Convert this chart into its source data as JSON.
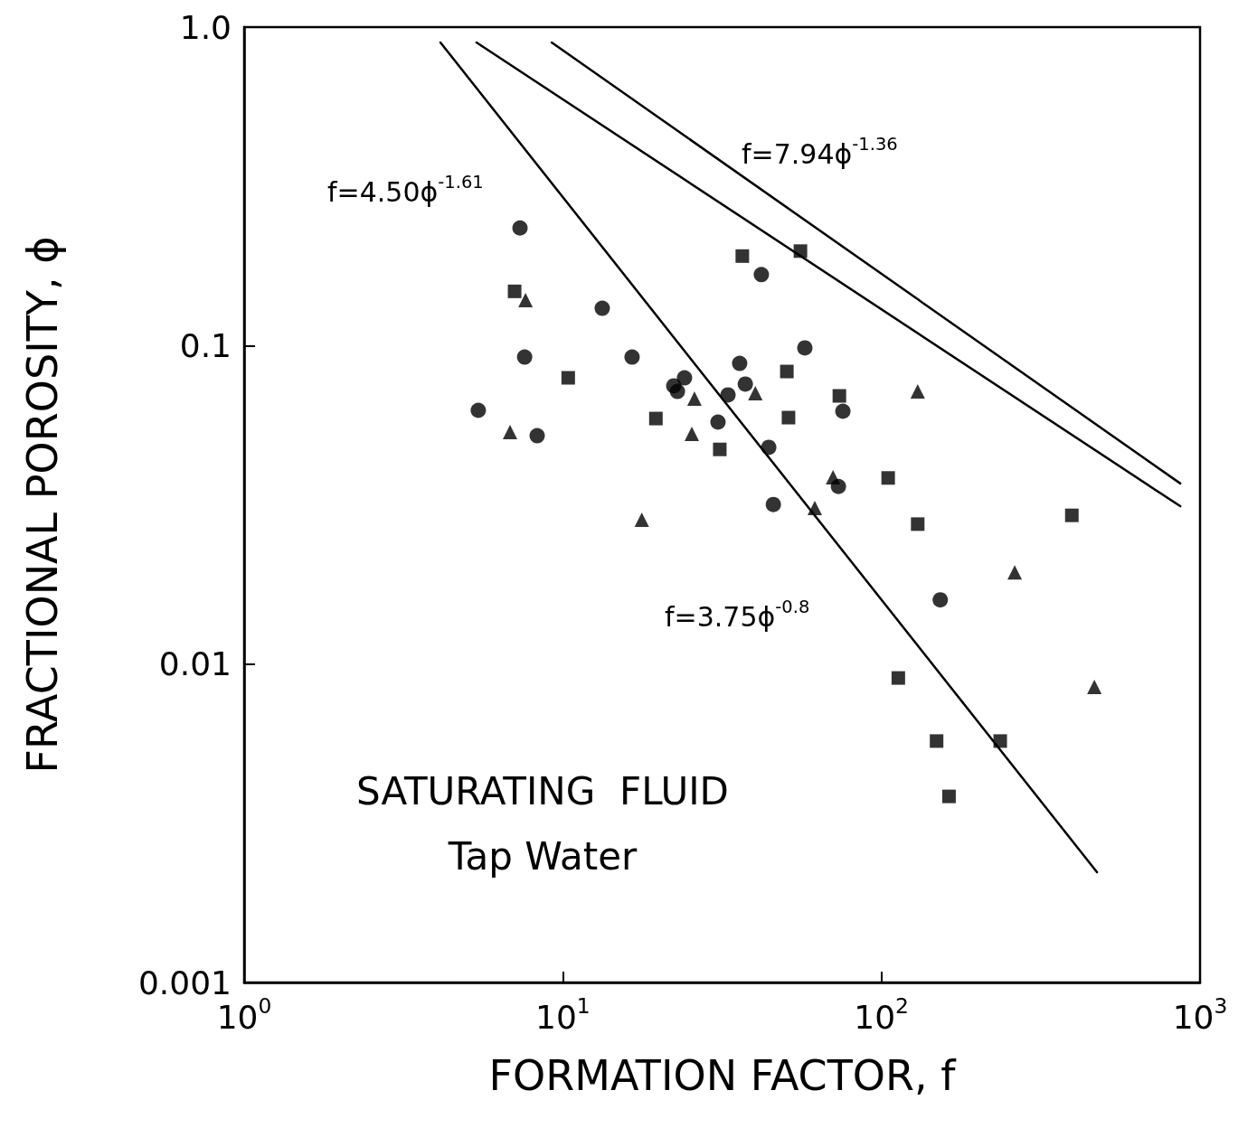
{
  "chart_data": {
    "type": "scatter",
    "xlabel": "FORMATION FACTOR, f",
    "ylabel": "FRACTIONAL POROSITY, ϕ",
    "log": "xy",
    "grid": false,
    "xlim": [
      1,
      1000
    ],
    "xticks": [
      {
        "value": 1,
        "label": "10$^{0}$"
      },
      {
        "value": 10,
        "label": "10$^{1}$"
      },
      {
        "value": 100,
        "label": "10$^{2}$"
      },
      {
        "value": 1000,
        "label": "10$^{3}$"
      }
    ],
    "ylim": [
      0.001,
      1
    ],
    "yticks": [
      0.001,
      0.01,
      0.1,
      {
        "value": 1,
        "label": "1.0"
      }
    ],
    "series": [
      {
        "marker": "circle",
        "color": "#000000",
        "x": [
          7.34,
          7.59,
          5.43,
          13.3,
          16.5,
          22.3,
          22.9,
          30.7,
          37.4,
          42.0,
          57.5,
          73.3,
          153
        ],
        "values": [
          0.234,
          0.092,
          0.0626,
          0.131,
          0.092,
          0.0747,
          0.0718,
          0.0575,
          0.0757,
          0.167,
          0.0983,
          0.0361,
          0.0159
        ]
      },
      {
        "marker": "circle",
        "color": "#000000",
        "x": [
          8.31,
          24.1,
          35.9,
          33.0,
          44.3,
          45.8,
          75.7
        ],
        "values": [
          0.0521,
          0.0792,
          0.0879,
          0.07,
          0.0479,
          0.0317,
          0.0622
        ]
      },
      {
        "marker": "square",
        "color": "#000000",
        "x": [
          7.06,
          10.4,
          31.1,
          36.6,
          55.7,
          50.5,
          51.1,
          73.8,
          105,
          130,
          396,
          149,
          236
        ],
        "values": [
          0.148,
          0.0792,
          0.0472,
          0.191,
          0.198,
          0.0829,
          0.0594,
          0.0695,
          0.0384,
          0.0275,
          0.0293,
          0.00573,
          0.00573
        ]
      },
      {
        "marker": "square",
        "color": "#000000",
        "x": [
          19.6,
          113,
          163
        ],
        "values": [
          0.059,
          0.00904,
          0.00384
        ]
      },
      {
        "marker": "triangle",
        "color": "#000000",
        "x": [
          7.64,
          17.7,
          25.4
        ],
        "values": [
          0.139,
          0.0284,
          0.0528
        ]
      },
      {
        "marker": "triangle",
        "color": "#000000",
        "x": [
          6.83,
          25.9,
          40.2,
          70.5,
          61.8,
          130,
          262,
          466
        ],
        "values": [
          0.0535,
          0.0681,
          0.0709,
          0.0386,
          0.0309,
          0.0718,
          0.0194,
          0.00848
        ]
      },
      {
        "type": "line",
        "marker": "none",
        "color": "#000000",
        "x": [
          4.13,
          475
        ],
        "values": [
          0.895,
          0.00222
        ]
      },
      {
        "type": "line",
        "marker": "none",
        "color": "#000000",
        "x": [
          5.36,
          867
        ],
        "values": [
          0.895,
          0.0313
        ]
      },
      {
        "type": "line",
        "marker": "none",
        "color": "#000000",
        "x": [
          9.23,
          867
        ],
        "values": [
          0.895,
          0.0369
        ]
      }
    ],
    "annotations": [
      "f=4.50ϕ$^{-1.61}$",
      "f=7.94ϕ$^{-1.36}$",
      "f=3.75ϕ$^{-0.8}$",
      "SATURATING  FLUID",
      "Tap Water"
    ]
  }
}
